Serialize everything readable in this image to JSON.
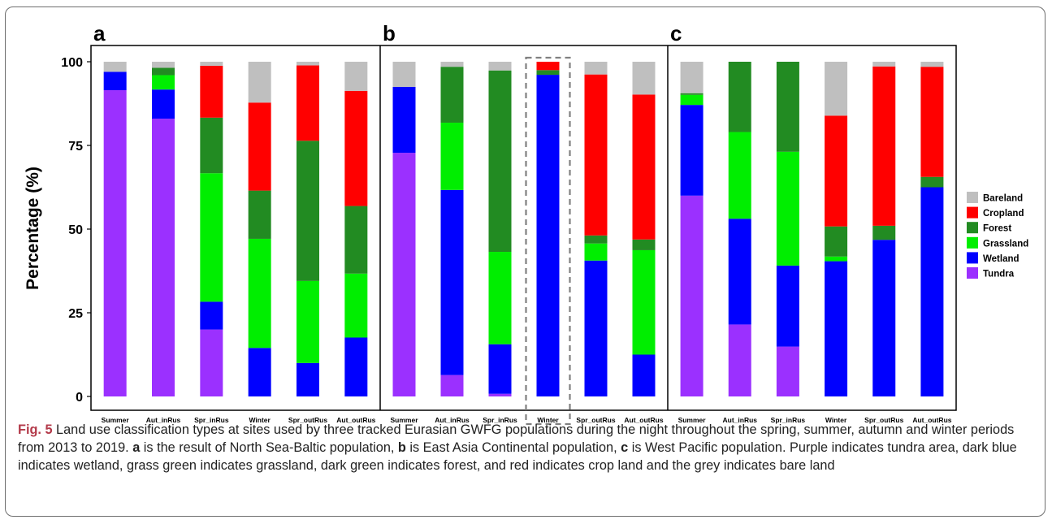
{
  "chart_data": {
    "type": "bar",
    "stacked": true,
    "ylabel": "Percentage (%)",
    "ylim": [
      0,
      100
    ],
    "yticks": [
      "0",
      "25",
      "50",
      "75",
      "100"
    ],
    "categories": [
      "Summer",
      "Aut_inRus",
      "Spr_inRus",
      "Winter",
      "Spr_outRus",
      "Aut_outRus"
    ],
    "legend": {
      "position": "right",
      "entries": [
        {
          "name": "Bareland",
          "color": "#bfbfbf"
        },
        {
          "name": "Cropland",
          "color": "#ff0000"
        },
        {
          "name": "Forest",
          "color": "#228b22"
        },
        {
          "name": "Grassland",
          "color": "#00ee00"
        },
        {
          "name": "Wetland",
          "color": "#0000ff"
        },
        {
          "name": "Tundra",
          "color": "#9b30ff"
        }
      ]
    },
    "stack_order": [
      "Tundra",
      "Wetland",
      "Grassland",
      "Forest",
      "Cropland",
      "Bareland"
    ],
    "panels": [
      {
        "label": "a",
        "series": [
          {
            "name": "Tundra",
            "values": [
              91.5,
              83,
              20,
              0,
              0,
              0
            ]
          },
          {
            "name": "Wetland",
            "values": [
              5.5,
              8.7,
              8.3,
              14.5,
              10,
              17.6
            ]
          },
          {
            "name": "Grassland",
            "values": [
              0,
              4.3,
              38.4,
              32.6,
              24.5,
              19.1
            ]
          },
          {
            "name": "Forest",
            "values": [
              0,
              2.2,
              16.6,
              14.4,
              41.9,
              20.2
            ]
          },
          {
            "name": "Cropland",
            "values": [
              0,
              0,
              15.5,
              26.3,
              22.5,
              34.4
            ]
          },
          {
            "name": "Bareland",
            "values": [
              3,
              1.8,
              1.2,
              12.2,
              1.1,
              8.7
            ]
          }
        ],
        "highlight": null
      },
      {
        "label": "b",
        "series": [
          {
            "name": "Tundra",
            "values": [
              72.8,
              6.4,
              0.8,
              0,
              0,
              0
            ]
          },
          {
            "name": "Wetland",
            "values": [
              19.7,
              55.3,
              14.8,
              96.1,
              40.6,
              12.5
            ]
          },
          {
            "name": "Grassland",
            "values": [
              0,
              20.1,
              27.6,
              0,
              5.1,
              31.2
            ]
          },
          {
            "name": "Forest",
            "values": [
              0,
              16.7,
              54.2,
              1.4,
              2.4,
              3.2
            ]
          },
          {
            "name": "Cropland",
            "values": [
              0,
              0,
              0,
              2.5,
              48.1,
              43.3
            ]
          },
          {
            "name": "Bareland",
            "values": [
              7.5,
              1.5,
              2.6,
              0,
              3.8,
              9.8
            ]
          }
        ],
        "highlight": "Winter"
      },
      {
        "label": "c",
        "series": [
          {
            "name": "Tundra",
            "values": [
              60,
              21.5,
              14.9,
              0,
              0,
              0
            ]
          },
          {
            "name": "Wetland",
            "values": [
              27.1,
              31.6,
              24.2,
              40.4,
              46.8,
              62.5
            ]
          },
          {
            "name": "Grassland",
            "values": [
              3,
              25.9,
              34,
              1.4,
              0,
              0
            ]
          },
          {
            "name": "Forest",
            "values": [
              0.5,
              21,
              26.9,
              9,
              4.2,
              3.1
            ]
          },
          {
            "name": "Cropland",
            "values": [
              0,
              0,
              0,
              33.1,
              47.6,
              32.9
            ]
          },
          {
            "name": "Bareland",
            "values": [
              9.4,
              0,
              0,
              16.1,
              1.4,
              1.5
            ]
          }
        ],
        "highlight": null
      }
    ]
  },
  "caption": {
    "fig_label": "Fig. 5",
    "part1": "  Land use classification types at sites used by three tracked Eurasian GWFG populations during the night throughout the spring, summer, autumn and winter periods from 2013 to 2019. ",
    "a": "a",
    "part2": " is the result of North Sea-Baltic population, ",
    "b": "b",
    "part3": " is East Asia Continental population, ",
    "c": "c",
    "part4": " is West Pacific population. Purple indicates tundra area, dark blue indicates wetland, grass green indicates grassland, dark green indicates forest, and red indicates crop land and the grey indicates bare land"
  }
}
